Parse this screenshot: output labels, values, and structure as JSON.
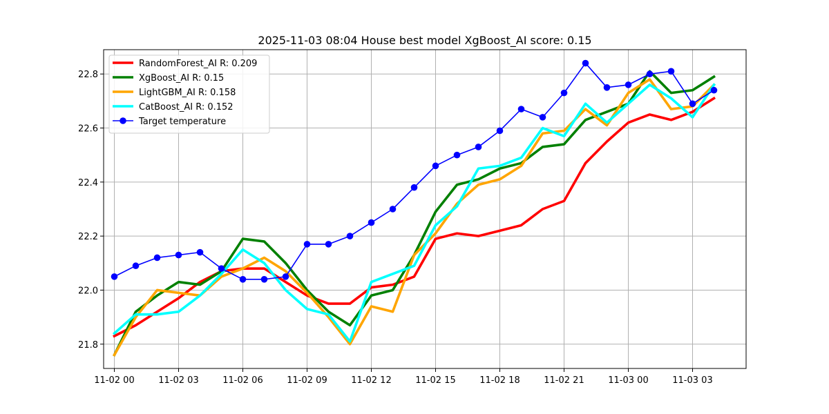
{
  "chart_data": {
    "type": "line",
    "title": "2025-11-03 08:04 House best model XgBoost_AI score: 0.15",
    "xlabel": "",
    "ylabel": "",
    "grid": true,
    "legend_position": "top-left",
    "x": [
      "11-02 00:00",
      "11-02 01:00",
      "11-02 02:00",
      "11-02 03:00",
      "11-02 04:00",
      "11-02 05:00",
      "11-02 06:00",
      "11-02 07:00",
      "11-02 08:00",
      "11-02 09:00",
      "11-02 10:00",
      "11-02 11:00",
      "11-02 12:00",
      "11-02 13:00",
      "11-02 14:00",
      "11-02 15:00",
      "11-02 16:00",
      "11-02 17:00",
      "11-02 18:00",
      "11-02 19:00",
      "11-02 20:00",
      "11-02 21:00",
      "11-02 22:00",
      "11-02 23:00",
      "11-03 00:00",
      "11-03 01:00",
      "11-03 02:00",
      "11-03 03:00",
      "11-03 04:00"
    ],
    "x_ticks": [
      "11-02 00",
      "11-02 03",
      "11-02 06",
      "11-02 09",
      "11-02 12",
      "11-02 15",
      "11-02 18",
      "11-02 21",
      "11-03 00",
      "11-03 03"
    ],
    "xlim": [
      "11-01 23:30",
      "11-03 05:30"
    ],
    "y_ticks": [
      21.8,
      22.0,
      22.2,
      22.4,
      22.6,
      22.8
    ],
    "ylim": [
      21.71,
      22.89
    ],
    "series": [
      {
        "name": "RandomForest_AI R: 0.209",
        "color": "#ff0000",
        "marker": false,
        "values": [
          21.83,
          21.87,
          21.92,
          21.97,
          22.03,
          22.07,
          22.08,
          22.08,
          22.03,
          21.98,
          21.95,
          21.95,
          22.01,
          22.02,
          22.05,
          22.19,
          22.21,
          22.2,
          22.22,
          22.24,
          22.3,
          22.33,
          22.47,
          22.55,
          22.62,
          22.65,
          22.63,
          22.66,
          22.71
        ]
      },
      {
        "name": "XgBoost_AI R: 0.15",
        "color": "#008000",
        "marker": false,
        "values": [
          21.76,
          21.92,
          21.98,
          22.03,
          22.02,
          22.07,
          22.19,
          22.18,
          22.1,
          22.0,
          21.92,
          21.87,
          21.98,
          22.0,
          22.13,
          22.29,
          22.39,
          22.41,
          22.45,
          22.47,
          22.53,
          22.54,
          22.63,
          22.66,
          22.69,
          22.81,
          22.73,
          22.74,
          22.79
        ]
      },
      {
        "name": "LightGBM_AI R: 0.158",
        "color": "#ffa500",
        "marker": false,
        "values": [
          21.76,
          21.9,
          22.0,
          21.99,
          21.98,
          22.05,
          22.08,
          22.12,
          22.07,
          21.99,
          21.9,
          21.8,
          21.94,
          21.92,
          22.13,
          22.21,
          22.32,
          22.39,
          22.41,
          22.46,
          22.58,
          22.59,
          22.67,
          22.61,
          22.73,
          22.78,
          22.67,
          22.68,
          22.76
        ]
      },
      {
        "name": "CatBoost_AI R: 0.152",
        "color": "#00ffff",
        "marker": false,
        "values": [
          21.84,
          21.91,
          21.91,
          21.92,
          21.98,
          22.06,
          22.15,
          22.1,
          22.0,
          21.93,
          21.91,
          21.81,
          22.03,
          22.06,
          22.09,
          22.24,
          22.31,
          22.45,
          22.46,
          22.49,
          22.6,
          22.57,
          22.69,
          22.62,
          22.69,
          22.76,
          22.71,
          22.64,
          22.76
        ]
      },
      {
        "name": "Target temperature",
        "color": "#0000ff",
        "marker": true,
        "values": [
          22.05,
          22.09,
          22.12,
          22.13,
          22.14,
          22.08,
          22.04,
          22.04,
          22.05,
          22.17,
          22.17,
          22.2,
          22.25,
          22.3,
          22.38,
          22.46,
          22.5,
          22.53,
          22.59,
          22.67,
          22.64,
          22.73,
          22.84,
          22.75,
          22.76,
          22.8,
          22.81,
          22.69,
          22.74
        ]
      }
    ]
  }
}
